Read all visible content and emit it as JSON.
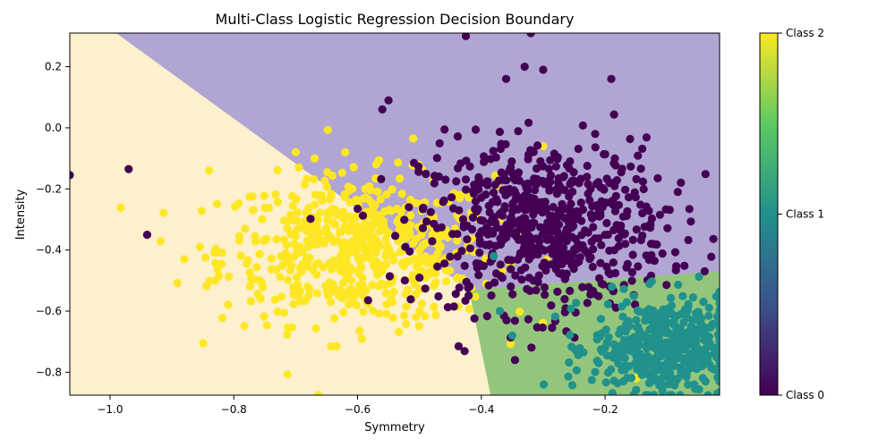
{
  "chart_data": {
    "type": "scatter",
    "title": "Multi-Class Logistic Regression Decision Boundary",
    "xlabel": "Symmetry",
    "ylabel": "Intensity",
    "xlim": [
      -1.065,
      -0.015
    ],
    "ylim": [
      -0.875,
      0.31
    ],
    "xticks": [
      -1.0,
      -0.8,
      -0.6,
      -0.4,
      -0.2
    ],
    "xtick_labels": [
      "−1.0",
      "−0.8",
      "−0.6",
      "−0.4",
      "−0.2"
    ],
    "yticks": [
      0.2,
      0.0,
      -0.2,
      -0.4,
      -0.6,
      -0.8
    ],
    "ytick_labels": [
      "0.2",
      "0.0",
      "−0.2",
      "−0.4",
      "−0.6",
      "−0.8"
    ],
    "grid": false,
    "colorbar": {
      "ticks": [
        0,
        1,
        2
      ],
      "labels": [
        "Class 0",
        "Class 1",
        "Class 2"
      ],
      "colormap": "viridis",
      "stops": [
        "#440154",
        "#3b528b",
        "#21918c",
        "#5ec962",
        "#fde725"
      ]
    },
    "regions": [
      {
        "class": "Class 0",
        "color": "#b1a5d4",
        "area": "upper right"
      },
      {
        "class": "Class 1",
        "color": "#93c67c",
        "area": "lower right"
      },
      {
        "class": "Class 2",
        "color": "#fdf0cc",
        "area": "left"
      }
    ],
    "boundaries": {
      "class2_class0": [
        [
          -0.99,
          0.31
        ],
        [
          -0.42,
          -0.53
        ]
      ],
      "class2_class1": [
        [
          -0.42,
          -0.53
        ],
        [
          -0.385,
          -0.875
        ]
      ],
      "class0_class1": [
        [
          -0.42,
          -0.53
        ],
        [
          -0.015,
          -0.47
        ]
      ]
    },
    "series": [
      {
        "name": "Class 0",
        "color": "#440154",
        "center": [
          -0.3,
          -0.32
        ],
        "spread": [
          0.1,
          0.14
        ],
        "n": 650,
        "extra_points": [
          [
            -1.065,
            -0.155
          ],
          [
            -0.97,
            -0.135
          ],
          [
            -0.425,
            0.3
          ],
          [
            -0.32,
            0.31
          ],
          [
            -0.3,
            0.19
          ],
          [
            -0.33,
            0.2
          ],
          [
            -0.36,
            0.16
          ],
          [
            -0.19,
            0.16
          ],
          [
            -0.55,
            0.09
          ],
          [
            -0.56,
            0.06
          ],
          [
            -0.94,
            -0.35
          ]
        ]
      },
      {
        "name": "Class 1",
        "color": "#21918c",
        "center": [
          -0.1,
          -0.72
        ],
        "spread": [
          0.06,
          0.08
        ],
        "n": 450,
        "extra_points": [
          [
            -0.38,
            -0.42
          ],
          [
            -0.37,
            -0.6
          ],
          [
            -0.35,
            -0.68
          ]
        ]
      },
      {
        "name": "Class 2",
        "color": "#fde725",
        "center": [
          -0.6,
          -0.4
        ],
        "spread": [
          0.11,
          0.12
        ],
        "n": 600,
        "extra_points": [
          [
            -0.15,
            -0.82
          ],
          [
            -0.51,
            -0.035
          ],
          [
            -0.3,
            -0.06
          ],
          [
            -0.7,
            -0.08
          ],
          [
            -0.62,
            -0.08
          ],
          [
            -0.84,
            -0.14
          ],
          [
            -0.88,
            -0.43
          ],
          [
            -0.83,
            -0.5
          ]
        ]
      }
    ]
  }
}
